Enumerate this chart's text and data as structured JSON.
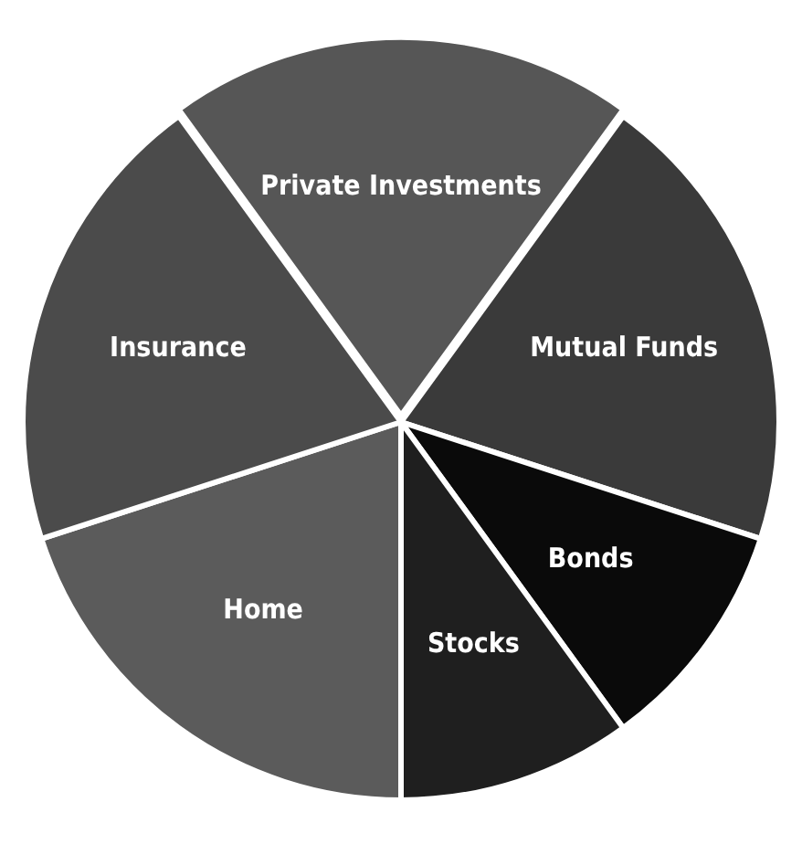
{
  "chart_data": {
    "type": "pie",
    "categories": [
      "Mutual Funds",
      "Bonds",
      "Stocks",
      "Home",
      "Insurance",
      "Private Investments"
    ],
    "values": [
      20,
      10,
      10,
      20,
      20,
      20
    ],
    "colors": [
      "#3a3a3a",
      "#0a0a0a",
      "#1f1f1f",
      "#5b5b5b",
      "#4b4b4b",
      "#565656"
    ],
    "legend": false
  }
}
